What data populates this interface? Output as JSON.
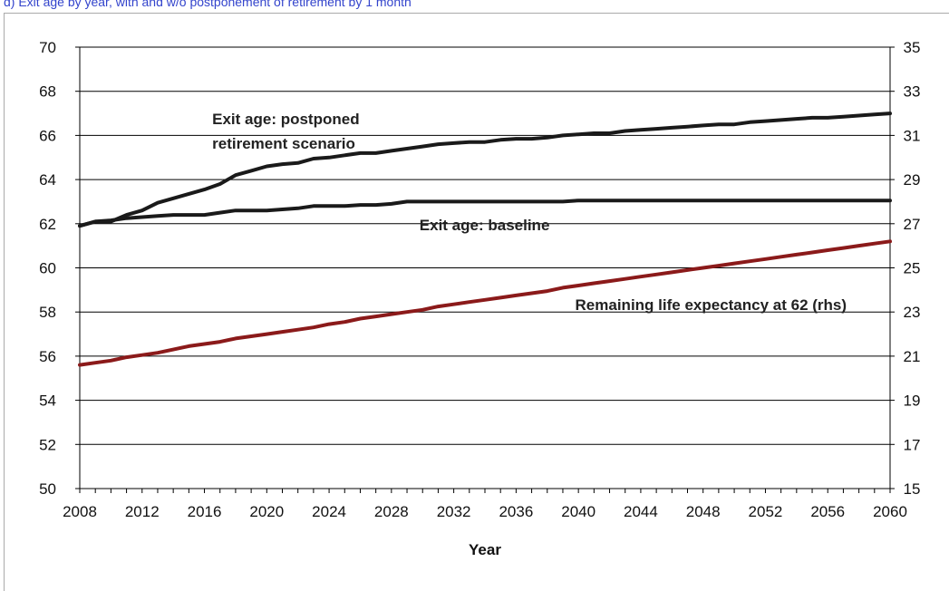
{
  "caption": "d) Exit age by year, with and w/o postponement of retirement by 1 month",
  "chart_data": {
    "type": "line",
    "title": "",
    "xlabel": "Year",
    "ylabel": "",
    "x": [
      2008,
      2009,
      2010,
      2011,
      2012,
      2013,
      2014,
      2015,
      2016,
      2017,
      2018,
      2019,
      2020,
      2021,
      2022,
      2023,
      2024,
      2025,
      2026,
      2027,
      2028,
      2029,
      2030,
      2031,
      2032,
      2033,
      2034,
      2035,
      2036,
      2037,
      2038,
      2039,
      2040,
      2041,
      2042,
      2043,
      2044,
      2045,
      2046,
      2047,
      2048,
      2049,
      2050,
      2051,
      2052,
      2053,
      2054,
      2055,
      2056,
      2057,
      2058,
      2059,
      2060
    ],
    "xlim": [
      2008,
      2060
    ],
    "x_ticks": [
      "2008",
      "2012",
      "2016",
      "2020",
      "2024",
      "2028",
      "2032",
      "2036",
      "2040",
      "2044",
      "2048",
      "2052",
      "2056",
      "2060"
    ],
    "ylim": [
      50,
      70
    ],
    "y_ticks": [
      "50",
      "52",
      "54",
      "56",
      "58",
      "60",
      "62",
      "64",
      "66",
      "68",
      "70"
    ],
    "y2lim": [
      15,
      35
    ],
    "y2_ticks": [
      "15",
      "17",
      "19",
      "21",
      "23",
      "25",
      "27",
      "29",
      "31",
      "33",
      "35"
    ],
    "grid": true,
    "legend": "none",
    "series": [
      {
        "name": "Exit age: postponed retirement scenario",
        "axis": "left",
        "color": "#1a1a1a",
        "values": [
          61.9,
          62.1,
          62.1,
          62.4,
          62.6,
          62.95,
          63.15,
          63.35,
          63.55,
          63.8,
          64.2,
          64.4,
          64.6,
          64.7,
          64.75,
          64.95,
          65.0,
          65.1,
          65.2,
          65.2,
          65.3,
          65.4,
          65.5,
          65.6,
          65.65,
          65.7,
          65.7,
          65.8,
          65.85,
          65.85,
          65.9,
          66.0,
          66.05,
          66.1,
          66.1,
          66.2,
          66.25,
          66.3,
          66.35,
          66.4,
          66.45,
          66.5,
          66.5,
          66.6,
          66.65,
          66.7,
          66.75,
          66.8,
          66.8,
          66.85,
          66.9,
          66.95,
          67.0
        ]
      },
      {
        "name": "Exit age: baseline",
        "axis": "left",
        "color": "#1a1a1a",
        "values": [
          61.9,
          62.1,
          62.15,
          62.25,
          62.3,
          62.35,
          62.4,
          62.4,
          62.4,
          62.5,
          62.6,
          62.6,
          62.6,
          62.65,
          62.7,
          62.8,
          62.8,
          62.8,
          62.85,
          62.85,
          62.9,
          63.0,
          63.0,
          63.0,
          63.0,
          63.0,
          63.0,
          63.0,
          63.0,
          63.0,
          63.0,
          63.0,
          63.05,
          63.05,
          63.05,
          63.05,
          63.05,
          63.05,
          63.05,
          63.05,
          63.05,
          63.05,
          63.05,
          63.05,
          63.05,
          63.05,
          63.05,
          63.05,
          63.05,
          63.05,
          63.05,
          63.05,
          63.05
        ]
      },
      {
        "name": "Remaining life expectancy at 62 (rhs)",
        "axis": "right",
        "color": "#8b1a1a",
        "values": [
          20.6,
          20.7,
          20.8,
          20.95,
          21.05,
          21.15,
          21.3,
          21.45,
          21.55,
          21.65,
          21.8,
          21.9,
          22.0,
          22.1,
          22.2,
          22.3,
          22.45,
          22.55,
          22.7,
          22.8,
          22.9,
          23.0,
          23.1,
          23.25,
          23.35,
          23.45,
          23.55,
          23.65,
          23.75,
          23.85,
          23.95,
          24.1,
          24.2,
          24.3,
          24.4,
          24.5,
          24.6,
          24.7,
          24.8,
          24.9,
          25.0,
          25.1,
          25.2,
          25.3,
          25.4,
          25.5,
          25.6,
          25.7,
          25.8,
          25.9,
          26.0,
          26.1,
          26.2
        ]
      }
    ],
    "annotations": [
      {
        "text": "Exit age: postponed",
        "x": 2016.5,
        "y": 66.5,
        "axis": "left"
      },
      {
        "text": "retirement scenario",
        "x": 2016.5,
        "y": 65.4,
        "axis": "left"
      },
      {
        "text": "Exit age: baseline",
        "x": 2029.8,
        "y": 61.7,
        "axis": "left"
      },
      {
        "text": "Remaining life expectancy at 62 (rhs)",
        "x": 2048.5,
        "y": 23.1,
        "axis": "right"
      }
    ]
  }
}
